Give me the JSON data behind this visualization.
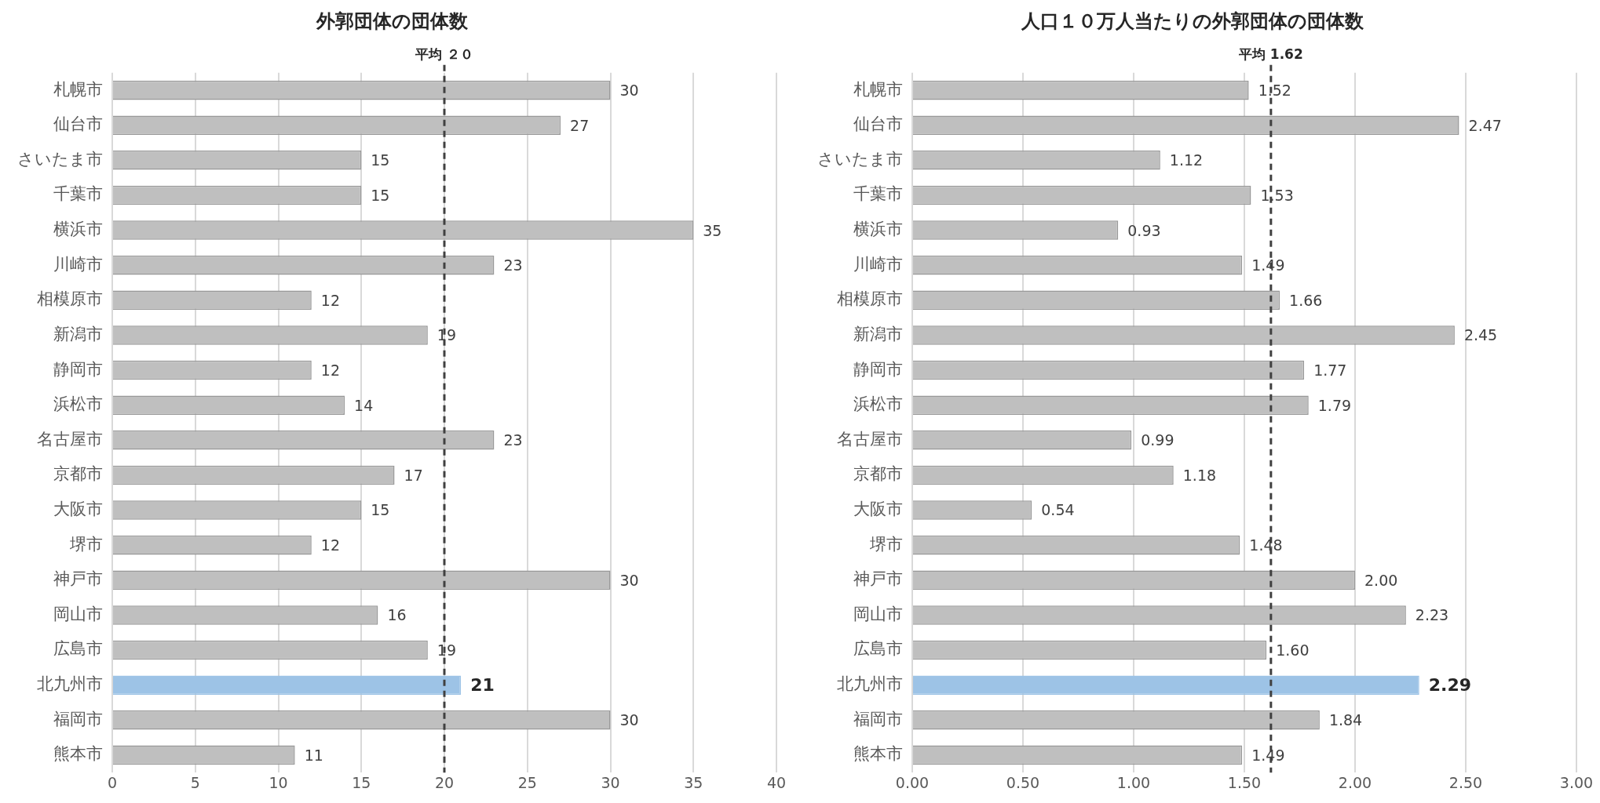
{
  "chart_data": [
    {
      "type": "bar",
      "orientation": "horizontal",
      "title": "外郭団体の団体数",
      "categories": [
        "札幌市",
        "仙台市",
        "さいたま市",
        "千葉市",
        "横浜市",
        "川崎市",
        "相模原市",
        "新潟市",
        "静岡市",
        "浜松市",
        "名古屋市",
        "京都市",
        "大阪市",
        "堺市",
        "神戸市",
        "岡山市",
        "広島市",
        "北九州市",
        "福岡市",
        "熊本市"
      ],
      "values": [
        30,
        27,
        15,
        15,
        35,
        23,
        12,
        19,
        12,
        14,
        23,
        17,
        15,
        12,
        30,
        16,
        19,
        21,
        30,
        11
      ],
      "colors": [
        "#bfbfbf",
        "#bfbfbf",
        "#bfbfbf",
        "#bfbfbf",
        "#bfbfbf",
        "#bfbfbf",
        "#bfbfbf",
        "#bfbfbf",
        "#bfbfbf",
        "#bfbfbf",
        "#bfbfbf",
        "#bfbfbf",
        "#bfbfbf",
        "#bfbfbf",
        "#bfbfbf",
        "#bfbfbf",
        "#bfbfbf",
        "#9dc3e6",
        "#bfbfbf",
        "#bfbfbf"
      ],
      "xlim": [
        0,
        40
      ],
      "xticks": [
        0,
        5,
        10,
        15,
        20,
        25,
        30,
        35,
        40
      ],
      "data_labels": true,
      "grid": "x",
      "legend": false,
      "ref_lines": [
        {
          "axis": "x",
          "value": 20,
          "label": "平均 ２０",
          "color": "#404040",
          "line_style": "dashed"
        }
      ]
    },
    {
      "type": "bar",
      "orientation": "horizontal",
      "title": "人口１０万人当たりの外郭団体の団体数",
      "categories": [
        "札幌市",
        "仙台市",
        "さいたま市",
        "千葉市",
        "横浜市",
        "川崎市",
        "相模原市",
        "新潟市",
        "静岡市",
        "浜松市",
        "名古屋市",
        "京都市",
        "大阪市",
        "堺市",
        "神戸市",
        "岡山市",
        "広島市",
        "北九州市",
        "福岡市",
        "熊本市"
      ],
      "values": [
        1.52,
        2.47,
        1.12,
        1.53,
        0.93,
        1.49,
        1.66,
        2.45,
        1.77,
        1.79,
        0.99,
        1.18,
        0.54,
        1.48,
        2,
        2.23,
        1.6,
        2.29,
        1.84,
        1.49
      ],
      "value_labels": [
        "1.52",
        "2.47",
        "1.12",
        "1.53",
        "0.93",
        "1.49",
        "1.66",
        "2.45",
        "1.77",
        "1.79",
        "0.99",
        "1.18",
        "0.54",
        "1.48",
        "2.00",
        "2.23",
        "1.60",
        "2.29",
        "1.84",
        "1.49"
      ],
      "colors": [
        "#bfbfbf",
        "#bfbfbf",
        "#bfbfbf",
        "#bfbfbf",
        "#bfbfbf",
        "#bfbfbf",
        "#bfbfbf",
        "#bfbfbf",
        "#bfbfbf",
        "#bfbfbf",
        "#bfbfbf",
        "#bfbfbf",
        "#bfbfbf",
        "#bfbfbf",
        "#bfbfbf",
        "#bfbfbf",
        "#bfbfbf",
        "#9dc3e6",
        "#bfbfbf",
        "#bfbfbf"
      ],
      "xlim": [
        0,
        3
      ],
      "xticks": [
        {
          "value": 0,
          "label": "0.00"
        },
        {
          "value": 0.5,
          "label": "0.50"
        },
        {
          "value": 1,
          "label": "1.00"
        },
        {
          "value": 1.5,
          "label": "1.50"
        },
        {
          "value": 2,
          "label": "2.00"
        },
        {
          "value": 2.5,
          "label": "2.50"
        },
        {
          "value": 3,
          "label": "3.00"
        }
      ],
      "grid": "x",
      "legend": false,
      "ref_lines": [
        {
          "axis": "x",
          "value": 1.62,
          "label": "平均 1.62",
          "color": "#404040",
          "line_style": "dashed"
        }
      ]
    }
  ]
}
